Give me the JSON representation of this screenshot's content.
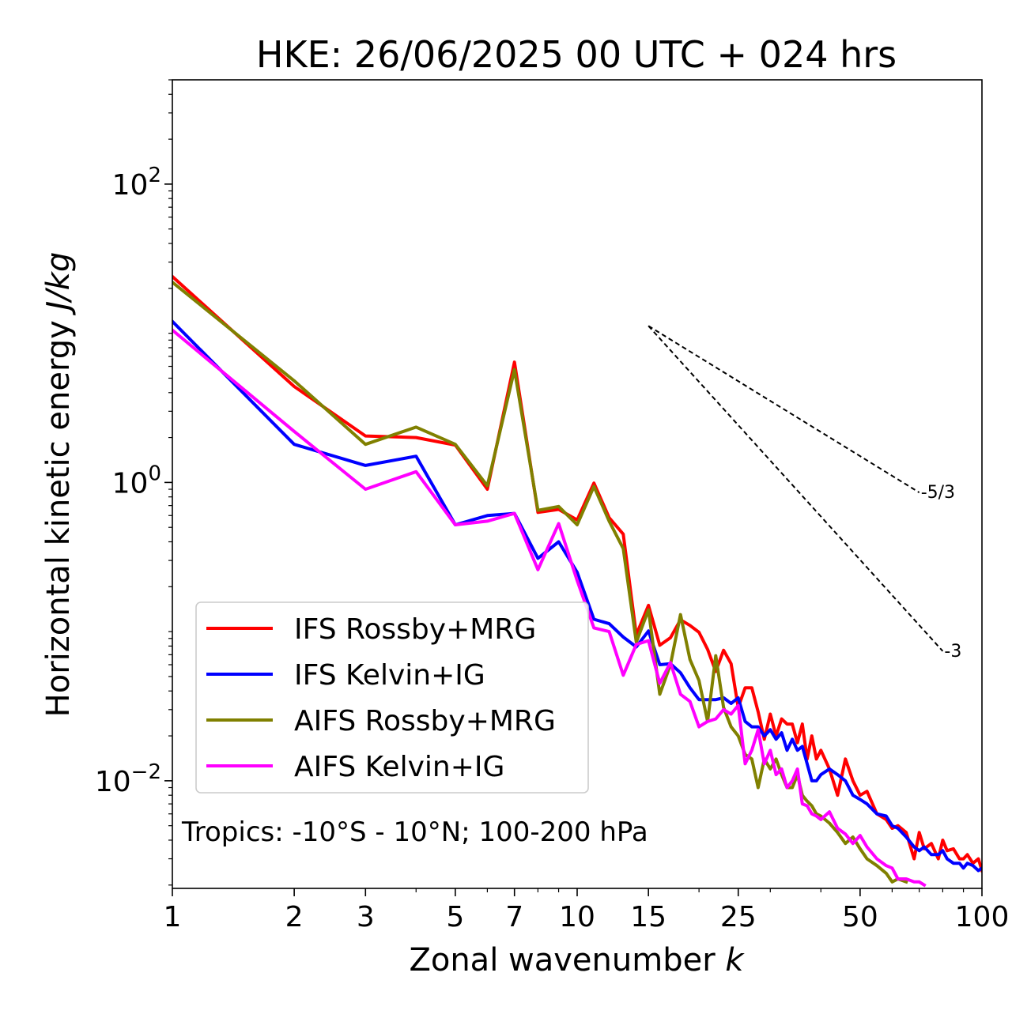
{
  "chart_data": {
    "type": "line",
    "title": "HKE: 26/06/2025 00 UTC + 024 hrs",
    "xlabel": "Zonal wavenumber",
    "xlabel_var": "k",
    "ylabel": "Horizontal kinetic energy",
    "ylabel_unit": "J/kg",
    "xscale": "log",
    "yscale": "log",
    "xlim": [
      1,
      100
    ],
    "ylim": [
      0.0019,
      500
    ],
    "grid": false,
    "legend_position": "center-left",
    "annotation": "Tropics: -10°S - 10°N; 100-200 hPa",
    "x_ticks": [
      {
        "value": 1,
        "label": "1"
      },
      {
        "value": 2,
        "label": "2"
      },
      {
        "value": 3,
        "label": "3"
      },
      {
        "value": 5,
        "label": "5"
      },
      {
        "value": 7,
        "label": "7"
      },
      {
        "value": 10,
        "label": "10"
      },
      {
        "value": 15,
        "label": "15"
      },
      {
        "value": 25,
        "label": "25"
      },
      {
        "value": 50,
        "label": "50"
      },
      {
        "value": 100,
        "label": "100"
      }
    ],
    "y_ticks": [
      {
        "value": 100,
        "base": "10",
        "exp": "2"
      },
      {
        "value": 1,
        "base": "10",
        "exp": "0"
      },
      {
        "value": 0.01,
        "base": "10",
        "exp": "−2"
      }
    ],
    "reference_slopes": [
      {
        "label": "-5/3",
        "x": [
          15,
          70
        ],
        "y": [
          11.2,
          0.856
        ]
      },
      {
        "label": "-3",
        "x": [
          15,
          80
        ],
        "y": [
          11.2,
          0.074
        ]
      }
    ],
    "series": [
      {
        "name": "IFS Rossby+MRG",
        "color": "#ff0000",
        "x": [
          1,
          2,
          3,
          4,
          5,
          6,
          7,
          8,
          9,
          10,
          11,
          12,
          13,
          14,
          15,
          16,
          17,
          18,
          19,
          20,
          21,
          22,
          23,
          24,
          25,
          26,
          27,
          28,
          29,
          30,
          31,
          32,
          33,
          34,
          35,
          36,
          37,
          38,
          39,
          40,
          42,
          44,
          46,
          48,
          50,
          52,
          55,
          58,
          60,
          62,
          65,
          68,
          70,
          72,
          75,
          78,
          80,
          82,
          85,
          88,
          90,
          92,
          95,
          98,
          100
        ],
        "y": [
          24.0,
          4.4,
          2.05,
          2.0,
          1.78,
          0.9,
          6.4,
          0.63,
          0.66,
          0.56,
          0.99,
          0.58,
          0.45,
          0.095,
          0.15,
          0.081,
          0.091,
          0.12,
          0.11,
          0.099,
          0.076,
          0.054,
          0.075,
          0.061,
          0.031,
          0.042,
          0.042,
          0.029,
          0.019,
          0.028,
          0.02,
          0.026,
          0.024,
          0.024,
          0.018,
          0.024,
          0.014,
          0.02,
          0.014,
          0.016,
          0.012,
          0.008,
          0.014,
          0.01,
          0.008,
          0.0085,
          0.006,
          0.0055,
          0.0048,
          0.005,
          0.0045,
          0.003,
          0.0045,
          0.0035,
          0.0038,
          0.003,
          0.004,
          0.0034,
          0.0035,
          0.003,
          0.003,
          0.0032,
          0.0028,
          0.003,
          0.0025
        ]
      },
      {
        "name": "IFS Kelvin+IG",
        "color": "#0000ff",
        "x": [
          1,
          2,
          3,
          4,
          5,
          6,
          7,
          8,
          9,
          10,
          11,
          12,
          13,
          14,
          15,
          16,
          17,
          18,
          19,
          20,
          21,
          22,
          23,
          24,
          25,
          26,
          27,
          28,
          29,
          30,
          31,
          32,
          33,
          34,
          35,
          36,
          37,
          38,
          39,
          40,
          42,
          44,
          46,
          48,
          50,
          52,
          55,
          58,
          60,
          62,
          65,
          68,
          70,
          72,
          75,
          78,
          80,
          82,
          85,
          88,
          90,
          92,
          95,
          98,
          100
        ],
        "y": [
          12.0,
          1.8,
          1.3,
          1.5,
          0.52,
          0.6,
          0.62,
          0.31,
          0.4,
          0.25,
          0.121,
          0.113,
          0.092,
          0.079,
          0.101,
          0.06,
          0.061,
          0.053,
          0.042,
          0.035,
          0.035,
          0.035,
          0.036,
          0.033,
          0.036,
          0.025,
          0.023,
          0.023,
          0.02,
          0.022,
          0.019,
          0.021,
          0.016,
          0.019,
          0.016,
          0.017,
          0.013,
          0.01,
          0.01,
          0.011,
          0.012,
          0.011,
          0.01,
          0.008,
          0.0075,
          0.007,
          0.006,
          0.0058,
          0.005,
          0.0048,
          0.0042,
          0.0036,
          0.0034,
          0.0036,
          0.0032,
          0.0032,
          0.0034,
          0.003,
          0.0028,
          0.0028,
          0.0026,
          0.0028,
          0.0027,
          0.0025,
          0.0026
        ]
      },
      {
        "name": "AIFS Rossby+MRG",
        "color": "#808000",
        "x": [
          1,
          2,
          3,
          4,
          5,
          6,
          7,
          8,
          9,
          10,
          11,
          12,
          13,
          14,
          15,
          16,
          17,
          18,
          19,
          20,
          21,
          22,
          23,
          24,
          25,
          26,
          27,
          28,
          29,
          30,
          31,
          32,
          33,
          34,
          35,
          36,
          37,
          38,
          39,
          40,
          42,
          44,
          46,
          48,
          50,
          52,
          55,
          58,
          60,
          62,
          65
        ],
        "y": [
          22.0,
          4.8,
          1.8,
          2.35,
          1.8,
          0.95,
          5.7,
          0.65,
          0.69,
          0.52,
          0.94,
          0.55,
          0.36,
          0.085,
          0.14,
          0.038,
          0.06,
          0.13,
          0.065,
          0.047,
          0.025,
          0.069,
          0.031,
          0.023,
          0.02,
          0.015,
          0.014,
          0.009,
          0.014,
          0.012,
          0.014,
          0.011,
          0.009,
          0.009,
          0.011,
          0.008,
          0.0073,
          0.0068,
          0.006,
          0.0058,
          0.0052,
          0.0045,
          0.0038,
          0.0042,
          0.0035,
          0.003,
          0.0027,
          0.0024,
          0.0021,
          0.0022,
          0.0021
        ]
      },
      {
        "name": "AIFS Kelvin+IG",
        "color": "#ff00ff",
        "x": [
          1,
          2,
          3,
          4,
          5,
          6,
          7,
          8,
          9,
          10,
          11,
          12,
          13,
          14,
          15,
          16,
          17,
          18,
          19,
          20,
          21,
          22,
          23,
          24,
          25,
          26,
          27,
          28,
          29,
          30,
          31,
          32,
          33,
          34,
          35,
          36,
          37,
          38,
          39,
          40,
          42,
          44,
          46,
          48,
          50,
          52,
          55,
          58,
          60,
          62,
          65,
          68,
          70,
          72
        ],
        "y": [
          10.5,
          2.2,
          0.9,
          1.18,
          0.52,
          0.55,
          0.62,
          0.26,
          0.53,
          0.22,
          0.106,
          0.1,
          0.051,
          0.082,
          0.087,
          0.045,
          0.062,
          0.038,
          0.034,
          0.023,
          0.025,
          0.026,
          0.03,
          0.028,
          0.032,
          0.013,
          0.016,
          0.022,
          0.013,
          0.016,
          0.011,
          0.012,
          0.009,
          0.01,
          0.012,
          0.007,
          0.0068,
          0.006,
          0.0058,
          0.0055,
          0.0062,
          0.0048,
          0.0044,
          0.0038,
          0.0043,
          0.0036,
          0.003,
          0.0027,
          0.0026,
          0.0022,
          0.0022,
          0.0021,
          0.0021,
          0.002
        ]
      }
    ]
  }
}
